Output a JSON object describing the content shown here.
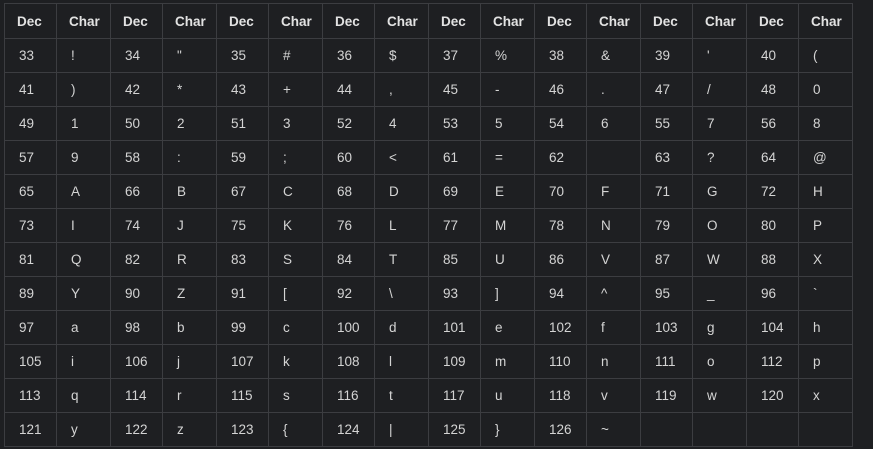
{
  "headers": [
    "Dec",
    "Char",
    "Dec",
    "Char",
    "Dec",
    "Char",
    "Dec",
    "Char",
    "Dec",
    "Char",
    "Dec",
    "Char",
    "Dec",
    "Char",
    "Dec",
    "Char"
  ],
  "rows": [
    [
      "33",
      "!",
      "34",
      "\"",
      "35",
      "#",
      "36",
      "$",
      "37",
      "%",
      "38",
      "&",
      "39",
      "'",
      "40",
      "("
    ],
    [
      "41",
      ")",
      "42",
      "*",
      "43",
      "+",
      "44",
      ",",
      "45",
      "-",
      "46",
      ".",
      "47",
      "/",
      "48",
      "0"
    ],
    [
      "49",
      "1",
      "50",
      "2",
      "51",
      "3",
      "52",
      "4",
      "53",
      "5",
      "54",
      "6",
      "55",
      "7",
      "56",
      "8"
    ],
    [
      "57",
      "9",
      "58",
      ":",
      "59",
      ";",
      "60",
      "<",
      "61",
      "=",
      "62",
      "",
      "63",
      "?",
      "64",
      "@"
    ],
    [
      "65",
      "A",
      "66",
      "B",
      "67",
      "C",
      "68",
      "D",
      "69",
      "E",
      "70",
      "F",
      "71",
      "G",
      "72",
      "H"
    ],
    [
      "73",
      "I",
      "74",
      "J",
      "75",
      "K",
      "76",
      "L",
      "77",
      "M",
      "78",
      "N",
      "79",
      "O",
      "80",
      "P"
    ],
    [
      "81",
      "Q",
      "82",
      "R",
      "83",
      "S",
      "84",
      "T",
      "85",
      "U",
      "86",
      "V",
      "87",
      "W",
      "88",
      "X"
    ],
    [
      "89",
      "Y",
      "90",
      "Z",
      "91",
      "[",
      "92",
      "\\",
      "93",
      "]",
      "94",
      "^",
      "95",
      "_",
      "96",
      "`"
    ],
    [
      "97",
      "a",
      "98",
      "b",
      "99",
      "c",
      "100",
      "d",
      "101",
      "e",
      "102",
      "f",
      "103",
      "g",
      "104",
      "h"
    ],
    [
      "105",
      "i",
      "106",
      "j",
      "107",
      "k",
      "108",
      "l",
      "109",
      "m",
      "110",
      "n",
      "111",
      "o",
      "112",
      "p"
    ],
    [
      "113",
      "q",
      "114",
      "r",
      "115",
      "s",
      "116",
      "t",
      "117",
      "u",
      "118",
      "v",
      "119",
      "w",
      "120",
      "x"
    ],
    [
      "121",
      "y",
      "122",
      "z",
      "123",
      "{",
      "124",
      "|",
      "125",
      "}",
      "126",
      "~",
      "",
      "",
      "",
      ""
    ]
  ]
}
